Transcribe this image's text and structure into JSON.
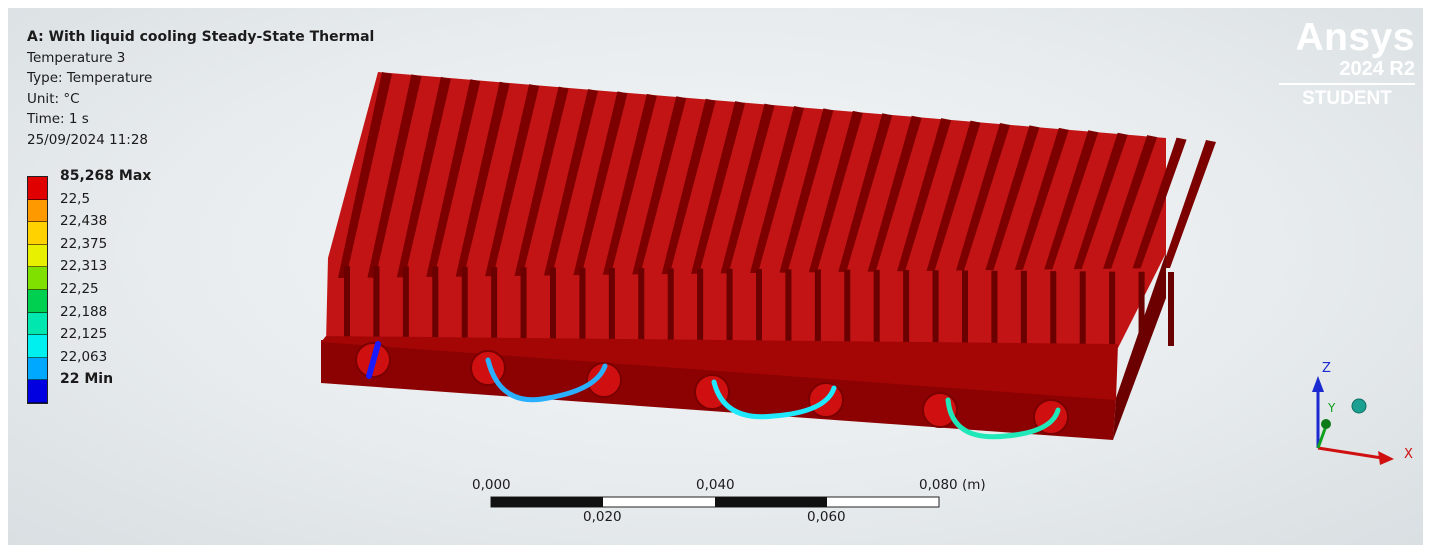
{
  "info": {
    "title": "A: With liquid cooling Steady-State Thermal",
    "result": "Temperature 3",
    "type": "Type: Temperature",
    "unit": "Unit: °C",
    "time": "Time: 1 s",
    "date": "25/09/2024 11:28"
  },
  "legend": [
    {
      "label": "85,268 Max",
      "color": "#e00000",
      "bold": true
    },
    {
      "label": "22,5",
      "color": "#ff9900",
      "bold": false
    },
    {
      "label": "22,438",
      "color": "#ffd200",
      "bold": false
    },
    {
      "label": "22,375",
      "color": "#e8f000",
      "bold": false
    },
    {
      "label": "22,313",
      "color": "#80e000",
      "bold": false
    },
    {
      "label": "22,25",
      "color": "#00d050",
      "bold": false
    },
    {
      "label": "22,188",
      "color": "#00e8b0",
      "bold": false
    },
    {
      "label": "22,125",
      "color": "#00f0f0",
      "bold": false
    },
    {
      "label": "22,063",
      "color": "#00a8ff",
      "bold": false
    },
    {
      "label": "22 Min",
      "color": "#0000e0",
      "bold": true
    }
  ],
  "logo": {
    "brand": "Ansys",
    "version": "2024 R2",
    "edition": "STUDENT"
  },
  "scale_bar": {
    "top_labels": [
      "0,000",
      "0,040",
      "0,080 (m)"
    ],
    "bottom_labels": [
      "0,020",
      "0,060"
    ]
  },
  "triad": {
    "x": "X",
    "y": "Y",
    "z": "Z"
  },
  "colors": {
    "heatsink_top": "#c01010",
    "heatsink_front": "#8a0000",
    "heatsink_side": "#6e0000",
    "pipe_1": "#1a1aff",
    "pipe_2": "#2ab0ff",
    "pipe_3": "#20e8ff",
    "pipe_4": "#20e8b8"
  }
}
